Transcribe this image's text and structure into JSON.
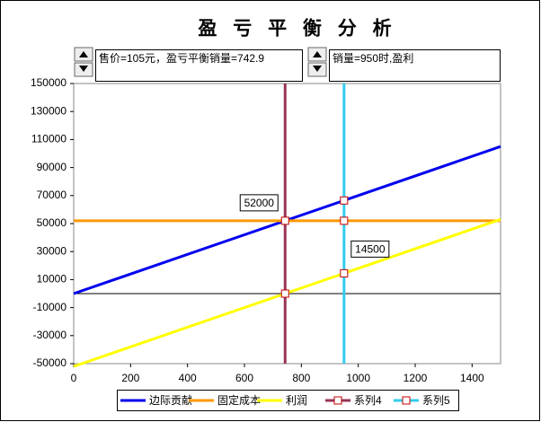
{
  "chart_data": {
    "type": "line",
    "title": "盈 亏 平 衡 分 析",
    "controls": [
      {
        "text": "售价=105元，盈亏平衡销量=742.9"
      },
      {
        "text": "销量=950时,盈利"
      }
    ],
    "xlim": [
      0,
      1500
    ],
    "xticks": [
      0,
      200,
      400,
      600,
      800,
      1000,
      1200,
      1400
    ],
    "ylim": [
      -50000,
      150000
    ],
    "yticks": [
      -50000,
      -30000,
      -10000,
      10000,
      30000,
      50000,
      70000,
      90000,
      110000,
      130000,
      150000
    ],
    "legend": "bottom",
    "series": [
      {
        "name": "边际贡献",
        "color": "#0000ee",
        "x": [
          0,
          1500
        ],
        "values": [
          0,
          105000
        ]
      },
      {
        "name": "固定成本",
        "color": "#ff9900",
        "x": [
          0,
          1500
        ],
        "values": [
          52000,
          52000
        ]
      },
      {
        "name": "利润",
        "color": "#ffff00",
        "x": [
          0,
          1500
        ],
        "values": [
          -52000,
          53000
        ]
      },
      {
        "name": "系列4",
        "color": "#993355",
        "marker": true,
        "x": [
          742.9,
          742.9,
          742.9,
          742.9
        ],
        "values": [
          -50000,
          0,
          52000,
          150000
        ],
        "value_labels": [
          null,
          null,
          "52000",
          null
        ]
      },
      {
        "name": "系列5",
        "color": "#33ccee",
        "marker": true,
        "x": [
          950,
          950,
          950,
          950,
          950
        ],
        "values": [
          -50000,
          14500,
          52000,
          66500,
          150000
        ],
        "value_labels": [
          null,
          "14500",
          null,
          null,
          null
        ]
      }
    ]
  }
}
